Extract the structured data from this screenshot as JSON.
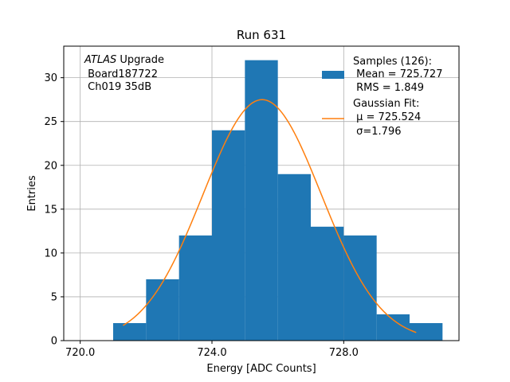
{
  "chart_data": {
    "type": "bar",
    "title": "Run 631",
    "xlabel": "Energy [ADC Counts]",
    "ylabel": "Entries",
    "xlim": [
      719.5,
      731.5
    ],
    "ylim": [
      0,
      33.6
    ],
    "xticks": [
      720,
      724,
      728
    ],
    "xtick_labels": [
      "720.0",
      "724.0",
      "728.0"
    ],
    "yticks": [
      0,
      5,
      10,
      15,
      20,
      25,
      30
    ],
    "grid": true,
    "bar_color": "#1f77b4",
    "fit_color": "#ff7f0e",
    "bins": [
      {
        "x0": 721,
        "x1": 722,
        "count": 2
      },
      {
        "x0": 722,
        "x1": 723,
        "count": 7
      },
      {
        "x0": 723,
        "x1": 724,
        "count": 12
      },
      {
        "x0": 724,
        "x1": 725,
        "count": 24
      },
      {
        "x0": 725,
        "x1": 726,
        "count": 32
      },
      {
        "x0": 726,
        "x1": 727,
        "count": 19
      },
      {
        "x0": 727,
        "x1": 728,
        "count": 13
      },
      {
        "x0": 728,
        "x1": 729,
        "count": 12
      },
      {
        "x0": 729,
        "x1": 730,
        "count": 3
      },
      {
        "x0": 730,
        "x1": 731,
        "count": 2
      }
    ],
    "fit": {
      "mu": 725.524,
      "sigma": 1.796,
      "amplitude": 27.5,
      "x_range": [
        721.3,
        730.2
      ]
    },
    "annotation_lines": [
      {
        "italic": "ATLAS",
        "text": " Upgrade"
      },
      {
        "italic": "",
        "text": " Board187722"
      },
      {
        "italic": "",
        "text": " Ch019 35dB"
      }
    ],
    "legend": {
      "placement": "top-right",
      "samples_lines": [
        "Samples (126):",
        " Mean = 725.727",
        " RMS = 1.849"
      ],
      "fit_lines": [
        "Gaussian Fit:",
        " μ = 725.524",
        " σ=1.796"
      ]
    }
  }
}
